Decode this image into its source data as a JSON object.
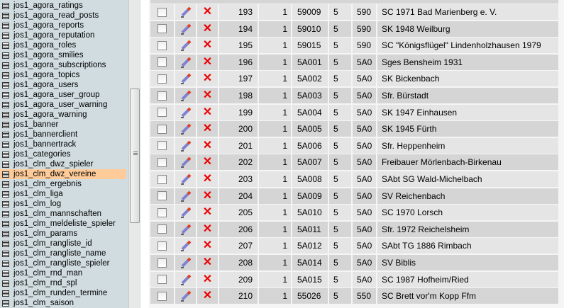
{
  "sidebar": {
    "selected_index": 17,
    "tables": [
      "jos1_agora_ratings",
      "jos1_agora_read_posts",
      "jos1_agora_reports",
      "jos1_agora_reputation",
      "jos1_agora_roles",
      "jos1_agora_smilies",
      "jos1_agora_subscriptions",
      "jos1_agora_topics",
      "jos1_agora_users",
      "jos1_agora_user_group",
      "jos1_agora_user_warning",
      "jos1_agora_warning",
      "jos1_banner",
      "jos1_bannerclient",
      "jos1_bannertrack",
      "jos1_categories",
      "jos1_clm_dwz_spieler",
      "jos1_clm_dwz_vereine",
      "jos1_clm_ergebnis",
      "jos1_clm_liga",
      "jos1_clm_log",
      "jos1_clm_mannschaften",
      "jos1_clm_meldeliste_spieler",
      "jos1_clm_params",
      "jos1_clm_rangliste_id",
      "jos1_clm_rangliste_name",
      "jos1_clm_rangliste_spieler",
      "jos1_clm_rnd_man",
      "jos1_clm_rnd_spl",
      "jos1_clm_runden_termine",
      "jos1_clm_saison"
    ]
  },
  "icons": {
    "table": "table-icon",
    "edit": "pencil-icon",
    "delete": "delete-x-icon",
    "delete_glyph": "✕"
  },
  "colors": {
    "sidebar_bg": "#d0dce0",
    "selected": "#ffcc99",
    "row_odd": "#e5e5e5",
    "row_even": "#d5d5d5",
    "delete": "#e00000"
  },
  "rows": [
    [
      "193",
      "1",
      "59009",
      "5",
      "590",
      "SC 1971 Bad Marienberg  e. V."
    ],
    [
      "194",
      "1",
      "59010",
      "5",
      "590",
      "SK 1948 Weilburg"
    ],
    [
      "195",
      "1",
      "59015",
      "5",
      "590",
      "SC \"Königsflügel\" Lindenholzhausen 1979"
    ],
    [
      "196",
      "1",
      "5A001",
      "5",
      "5A0",
      "Sges Bensheim 1931"
    ],
    [
      "197",
      "1",
      "5A002",
      "5",
      "5A0",
      "SK Bickenbach"
    ],
    [
      "198",
      "1",
      "5A003",
      "5",
      "5A0",
      "Sfr. Bürstadt"
    ],
    [
      "199",
      "1",
      "5A004",
      "5",
      "5A0",
      "SK 1947 Einhausen"
    ],
    [
      "200",
      "1",
      "5A005",
      "5",
      "5A0",
      "SK 1945 Fürth"
    ],
    [
      "201",
      "1",
      "5A006",
      "5",
      "5A0",
      "Sfr. Heppenheim"
    ],
    [
      "202",
      "1",
      "5A007",
      "5",
      "5A0",
      "Freibauer Mörlenbach-Birkenau"
    ],
    [
      "203",
      "1",
      "5A008",
      "5",
      "5A0",
      "SAbt SG Wald-Michelbach"
    ],
    [
      "204",
      "1",
      "5A009",
      "5",
      "5A0",
      "SV Reichenbach"
    ],
    [
      "205",
      "1",
      "5A010",
      "5",
      "5A0",
      "SC 1970 Lorsch"
    ],
    [
      "206",
      "1",
      "5A011",
      "5",
      "5A0",
      "Sfr. 1972 Reichelsheim"
    ],
    [
      "207",
      "1",
      "5A012",
      "5",
      "5A0",
      "SAbt TG 1886 Rimbach"
    ],
    [
      "208",
      "1",
      "5A014",
      "5",
      "5A0",
      "SV Biblis"
    ],
    [
      "209",
      "1",
      "5A015",
      "5",
      "5A0",
      "SC 1987 Hofheim/Ried"
    ],
    [
      "210",
      "1",
      "55026",
      "5",
      "550",
      "SC Brett vor'm Kopp Ffm"
    ]
  ]
}
